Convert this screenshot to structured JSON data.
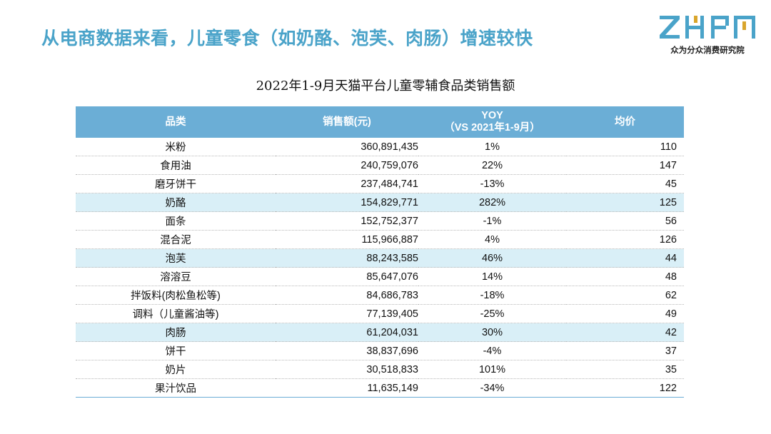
{
  "slide_title": "从电商数据来看，儿童零食（如奶酪、泡芙、肉肠）增速较快",
  "logo": {
    "text": "ZHFH",
    "subtitle": "众为分众消费研究院",
    "colors": {
      "z": "#4aa3c9",
      "h": "#4aa3c9",
      "accent": "#d9a52c",
      "f": "#4aa3c9"
    }
  },
  "table_title": "2022年1-9月天猫平台儿童零辅食品类销售额",
  "columns": {
    "category": "品类",
    "sales": "销售额(元)",
    "yoy_line1": "YOY",
    "yoy_line2": "（VS 2021年1-9月）",
    "price": "均价"
  },
  "rows": [
    {
      "category": "米粉",
      "sales": "360,891,435",
      "yoy": "1%",
      "price": "110",
      "highlight": false
    },
    {
      "category": "食用油",
      "sales": "240,759,076",
      "yoy": "22%",
      "price": "147",
      "highlight": false
    },
    {
      "category": "磨牙饼干",
      "sales": "237,484,741",
      "yoy": "-13%",
      "price": "45",
      "highlight": false
    },
    {
      "category": "奶酪",
      "sales": "154,829,771",
      "yoy": "282%",
      "price": "125",
      "highlight": true
    },
    {
      "category": "面条",
      "sales": "152,752,377",
      "yoy": "-1%",
      "price": "56",
      "highlight": false
    },
    {
      "category": "混合泥",
      "sales": "115,966,887",
      "yoy": "4%",
      "price": "126",
      "highlight": false
    },
    {
      "category": "泡芙",
      "sales": "88,243,585",
      "yoy": "46%",
      "price": "44",
      "highlight": true
    },
    {
      "category": "溶溶豆",
      "sales": "85,647,076",
      "yoy": "14%",
      "price": "48",
      "highlight": false
    },
    {
      "category": "拌饭料(肉松鱼松等)",
      "sales": "84,686,783",
      "yoy": "-18%",
      "price": "62",
      "highlight": false
    },
    {
      "category": "调料（儿童酱油等)",
      "sales": "77,139,405",
      "yoy": "-25%",
      "price": "49",
      "highlight": false
    },
    {
      "category": "肉肠",
      "sales": "61,204,031",
      "yoy": "30%",
      "price": "42",
      "highlight": true
    },
    {
      "category": "饼干",
      "sales": "38,837,696",
      "yoy": "-4%",
      "price": "37",
      "highlight": false
    },
    {
      "category": "奶片",
      "sales": "30,518,833",
      "yoy": "101%",
      "price": "35",
      "highlight": false
    },
    {
      "category": "果汁饮品",
      "sales": "11,635,149",
      "yoy": "-34%",
      "price": "122",
      "highlight": false
    }
  ]
}
